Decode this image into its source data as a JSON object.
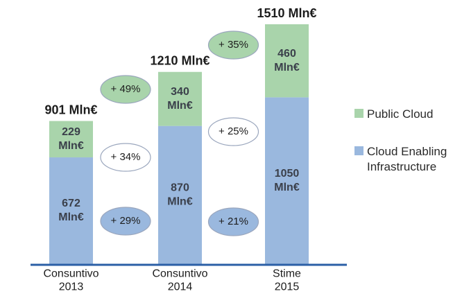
{
  "chart_data": {
    "type": "bar",
    "stacked": true,
    "categories": [
      [
        "Consuntivo",
        "2013"
      ],
      [
        "Consuntivo",
        "2014"
      ],
      [
        "Stime",
        "2015"
      ]
    ],
    "series": [
      {
        "name": "Cloud Enabling Infrastructure",
        "values": [
          672,
          870,
          1050
        ],
        "labels": [
          [
            "672",
            "Mln€"
          ],
          [
            "870",
            "Mln€"
          ],
          [
            "1050",
            "Mln€"
          ]
        ],
        "color": "#9ab8de"
      },
      {
        "name": "Public Cloud",
        "values": [
          229,
          340,
          460
        ],
        "labels": [
          [
            "229",
            "Mln€"
          ],
          [
            "340",
            "Mln€"
          ],
          [
            "460",
            "Mln€"
          ]
        ],
        "color": "#a9d4ab"
      }
    ],
    "totals": [
      {
        "value": 901,
        "label": "901 Mln€"
      },
      {
        "value": 1210,
        "label": "1210 Mln€"
      },
      {
        "value": 1510,
        "label": "1510 Mln€"
      }
    ],
    "growth_annotations": [
      {
        "between": [
          0,
          1
        ],
        "series": "Public Cloud",
        "text": "+ 49%",
        "style": "green"
      },
      {
        "between": [
          0,
          1
        ],
        "series": "total",
        "text": "+ 34%",
        "style": "white"
      },
      {
        "between": [
          0,
          1
        ],
        "series": "Cloud Enabling Infrastructure",
        "text": "+ 29%",
        "style": "blue"
      },
      {
        "between": [
          1,
          2
        ],
        "series": "Public Cloud",
        "text": "+ 35%",
        "style": "green"
      },
      {
        "between": [
          1,
          2
        ],
        "series": "total",
        "text": "+ 25%",
        "style": "white"
      },
      {
        "between": [
          1,
          2
        ],
        "series": "Cloud Enabling Infrastructure",
        "text": "+ 21%",
        "style": "blue"
      }
    ],
    "legend": {
      "placement": "right",
      "entries": [
        {
          "name": "Public Cloud",
          "label": [
            "Public Cloud"
          ],
          "color": "#a9d4ab"
        },
        {
          "name": "Cloud Enabling Infrastructure",
          "label": [
            "Cloud Enabling",
            "Infrastructure"
          ],
          "color": "#9ab8de"
        }
      ]
    },
    "bubble_colors": {
      "green": "#a9d4ab",
      "white": "#ffffff",
      "blue": "#9ab8de"
    },
    "axis_color": "#2b5fa6",
    "grid": false,
    "ylim": [
      0,
      1510
    ]
  }
}
